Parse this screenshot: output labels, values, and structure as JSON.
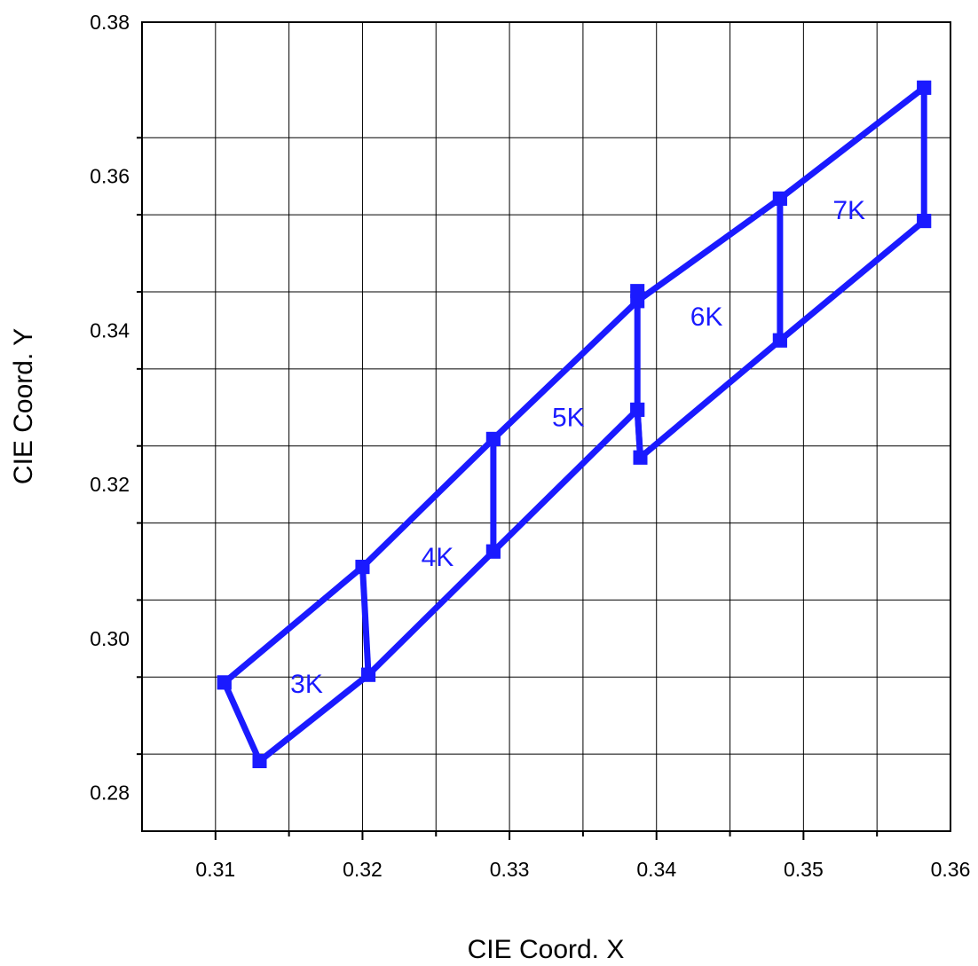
{
  "chart_data": {
    "type": "line",
    "title": "",
    "xlabel": "CIE Coord. X",
    "ylabel": "CIE Coord. Y",
    "xlim": [
      0.305,
      0.36
    ],
    "ylim": [
      0.275,
      0.38
    ],
    "x_ticks": [
      "0.31",
      "0.32",
      "0.33",
      "0.34",
      "0.35",
      "0.36"
    ],
    "y_ticks": [
      "0.28",
      "0.30",
      "0.32",
      "0.34",
      "0.36",
      "0.38"
    ],
    "grid": true,
    "color": "#1a1aff",
    "series": [
      {
        "x": [
          0.3106,
          0.32,
          0.3289,
          0.3387,
          0.3484,
          0.3582
        ],
        "y": [
          0.2943,
          0.3093,
          0.3259,
          0.3438,
          0.3571,
          0.3715
        ]
      },
      {
        "x": [
          0.313,
          0.3204,
          0.3289,
          0.3387,
          0.3389,
          0.3484,
          0.3582
        ],
        "y": [
          0.2841,
          0.2953,
          0.3113,
          0.3297,
          0.3235,
          0.3387,
          0.3542
        ]
      },
      {
        "x": [
          0.3106,
          0.313
        ],
        "y": [
          0.2943,
          0.2841
        ]
      },
      {
        "x": [
          0.32,
          0.3204
        ],
        "y": [
          0.3093,
          0.2953
        ]
      },
      {
        "x": [
          0.3289,
          0.3289
        ],
        "y": [
          0.3259,
          0.3113
        ]
      },
      {
        "x": [
          0.3387,
          0.3387,
          0.3389
        ],
        "y": [
          0.3451,
          0.3297,
          0.3235
        ]
      },
      {
        "x": [
          0.3484,
          0.3484
        ],
        "y": [
          0.3571,
          0.3387
        ]
      },
      {
        "x": [
          0.3582,
          0.3582
        ],
        "y": [
          0.3715,
          0.3542
        ]
      }
    ],
    "annotations": [
      {
        "text": "3K",
        "x": 0.3162,
        "y": 0.2942
      },
      {
        "text": "4K",
        "x": 0.3251,
        "y": 0.3107
      },
      {
        "text": "5K",
        "x": 0.334,
        "y": 0.3288
      },
      {
        "text": "6K",
        "x": 0.3434,
        "y": 0.3419
      },
      {
        "text": "7K",
        "x": 0.3531,
        "y": 0.3557
      }
    ]
  }
}
